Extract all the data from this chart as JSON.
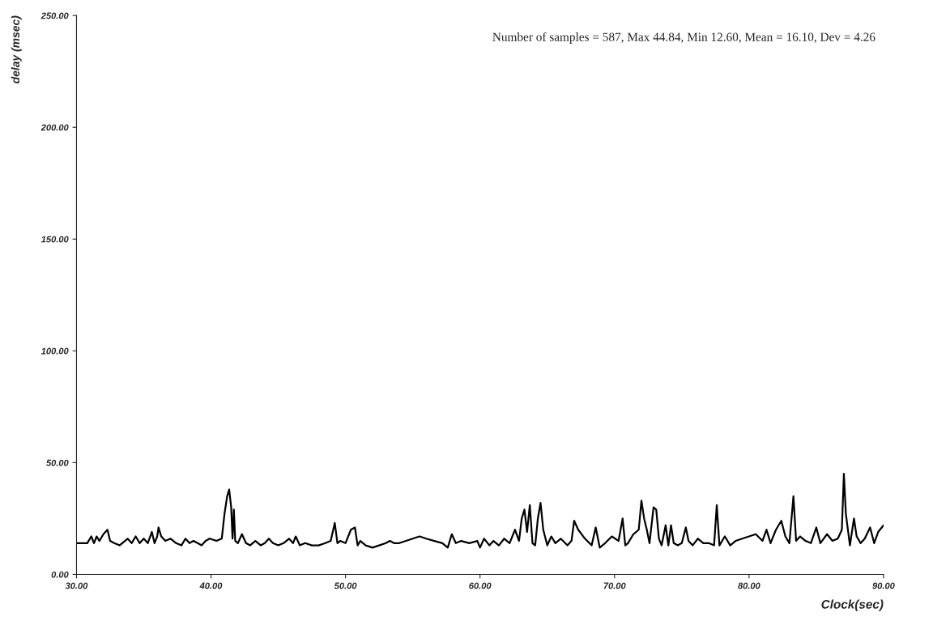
{
  "chart_data": {
    "type": "line",
    "xlabel": "Clock(sec)",
    "ylabel": "delay (msec)",
    "annotations": [
      "Number of samples = 587, Max 44.84, Min 12.60, Mean = 16.10, Dev = 4.26"
    ],
    "xlim": [
      30,
      90
    ],
    "ylim": [
      0,
      250
    ],
    "xticks": [
      {
        "value": 30,
        "label": "30.00"
      },
      {
        "value": 40,
        "label": "40.00"
      },
      {
        "value": 50,
        "label": "50.00"
      },
      {
        "value": 60,
        "label": "60.00"
      },
      {
        "value": 70,
        "label": "70.00"
      },
      {
        "value": 80,
        "label": "80.00"
      },
      {
        "value": 90,
        "label": "90.00"
      }
    ],
    "yticks": [
      {
        "value": 0,
        "label": "0.00"
      },
      {
        "value": 50,
        "label": "50.00"
      },
      {
        "value": 100,
        "label": "100.00"
      },
      {
        "value": 150,
        "label": "150.00"
      },
      {
        "value": 200,
        "label": "200.00"
      },
      {
        "value": 250,
        "label": "250.00"
      }
    ],
    "grid": false,
    "marker": "none",
    "line_style": "solid",
    "series": [
      {
        "color": "#000000",
        "x": [
          30,
          30.8,
          31.1,
          31.3,
          31.5,
          31.7,
          32.0,
          32.3,
          32.5,
          32.8,
          33.2,
          33.8,
          34.1,
          34.4,
          34.7,
          35.0,
          35.3,
          35.6,
          35.8,
          36.0,
          36.1,
          36.3,
          36.6,
          37.0,
          37.4,
          37.8,
          38.1,
          38.4,
          38.7,
          39.0,
          39.3,
          39.6,
          39.9,
          40.4,
          40.8,
          41.0,
          41.2,
          41.35,
          41.5,
          41.6,
          41.7,
          41.8,
          42.0,
          42.3,
          42.6,
          42.9,
          43.3,
          43.7,
          44.0,
          44.3,
          44.6,
          45.0,
          45.4,
          45.8,
          46.1,
          46.3,
          46.6,
          47.0,
          47.5,
          48.0,
          48.5,
          48.9,
          49.2,
          49.4,
          49.6,
          50.0,
          50.4,
          50.7,
          50.9,
          51.1,
          51.5,
          52.0,
          52.5,
          53.0,
          53.3,
          53.6,
          54.0,
          54.5,
          55.0,
          55.5,
          56.0,
          56.6,
          57.2,
          57.6,
          57.9,
          58.2,
          58.6,
          59.2,
          59.8,
          60.0,
          60.3,
          60.7,
          61.0,
          61.4,
          61.8,
          62.2,
          62.6,
          62.9,
          63.1,
          63.3,
          63.5,
          63.7,
          63.9,
          64.1,
          64.3,
          64.5,
          64.7,
          65.0,
          65.3,
          65.6,
          66.0,
          66.5,
          66.8,
          67.0,
          67.3,
          67.8,
          68.3,
          68.6,
          68.9,
          69.3,
          69.8,
          70.3,
          70.6,
          70.8,
          71.0,
          71.4,
          71.8,
          72.0,
          72.2,
          72.4,
          72.6,
          72.9,
          73.1,
          73.3,
          73.5,
          73.8,
          74.0,
          74.2,
          74.4,
          74.7,
          75.0,
          75.3,
          75.5,
          75.8,
          76.2,
          76.6,
          77.0,
          77.4,
          77.6,
          77.8,
          78.2,
          78.6,
          79.0,
          79.5,
          80.0,
          80.5,
          81.0,
          81.3,
          81.6,
          82.0,
          82.4,
          82.7,
          83.0,
          83.3,
          83.5,
          83.8,
          84.2,
          84.6,
          85.0,
          85.3,
          85.8,
          86.2,
          86.6,
          86.9,
          87.05,
          87.2,
          87.5,
          87.8,
          88.0,
          88.3,
          88.6,
          89.0,
          89.3,
          89.6,
          90.0
        ],
        "values": [
          14,
          14,
          17,
          14,
          17,
          15,
          18,
          20,
          15,
          14,
          13,
          16,
          14,
          17,
          14,
          16,
          14,
          19,
          14,
          17,
          21,
          17,
          15,
          16,
          14,
          13,
          16,
          14,
          15,
          14,
          13,
          15,
          16,
          15,
          16,
          27,
          35,
          38,
          30,
          16,
          29,
          15,
          14,
          18,
          14,
          13,
          15,
          13,
          14,
          16,
          14,
          13,
          14,
          16,
          14,
          17,
          13,
          14,
          13,
          13,
          14,
          15,
          23,
          14,
          15,
          14,
          20,
          21,
          13,
          15,
          13,
          12,
          13,
          14,
          15,
          14,
          14,
          15,
          16,
          17,
          16,
          15,
          14,
          12,
          18,
          14,
          15,
          14,
          15,
          12,
          16,
          13,
          15,
          13,
          16,
          14,
          20,
          15,
          25,
          29,
          19,
          31,
          14,
          13,
          25,
          32,
          20,
          13,
          17,
          14,
          16,
          13,
          15,
          24,
          20,
          16,
          13,
          21,
          12,
          14,
          17,
          15,
          25,
          13,
          14,
          18,
          20,
          33,
          25,
          20,
          14,
          30,
          29,
          16,
          13,
          22,
          13,
          22,
          14,
          13,
          14,
          21,
          15,
          13,
          16,
          14,
          14,
          13,
          31,
          13,
          17,
          13,
          15,
          16,
          17,
          18,
          15,
          20,
          14,
          20,
          24,
          17,
          14,
          35,
          15,
          17,
          15,
          14,
          21,
          14,
          18,
          15,
          16,
          20,
          45,
          27,
          13,
          25,
          17,
          14,
          16,
          21,
          14,
          19,
          22
        ]
      }
    ]
  }
}
